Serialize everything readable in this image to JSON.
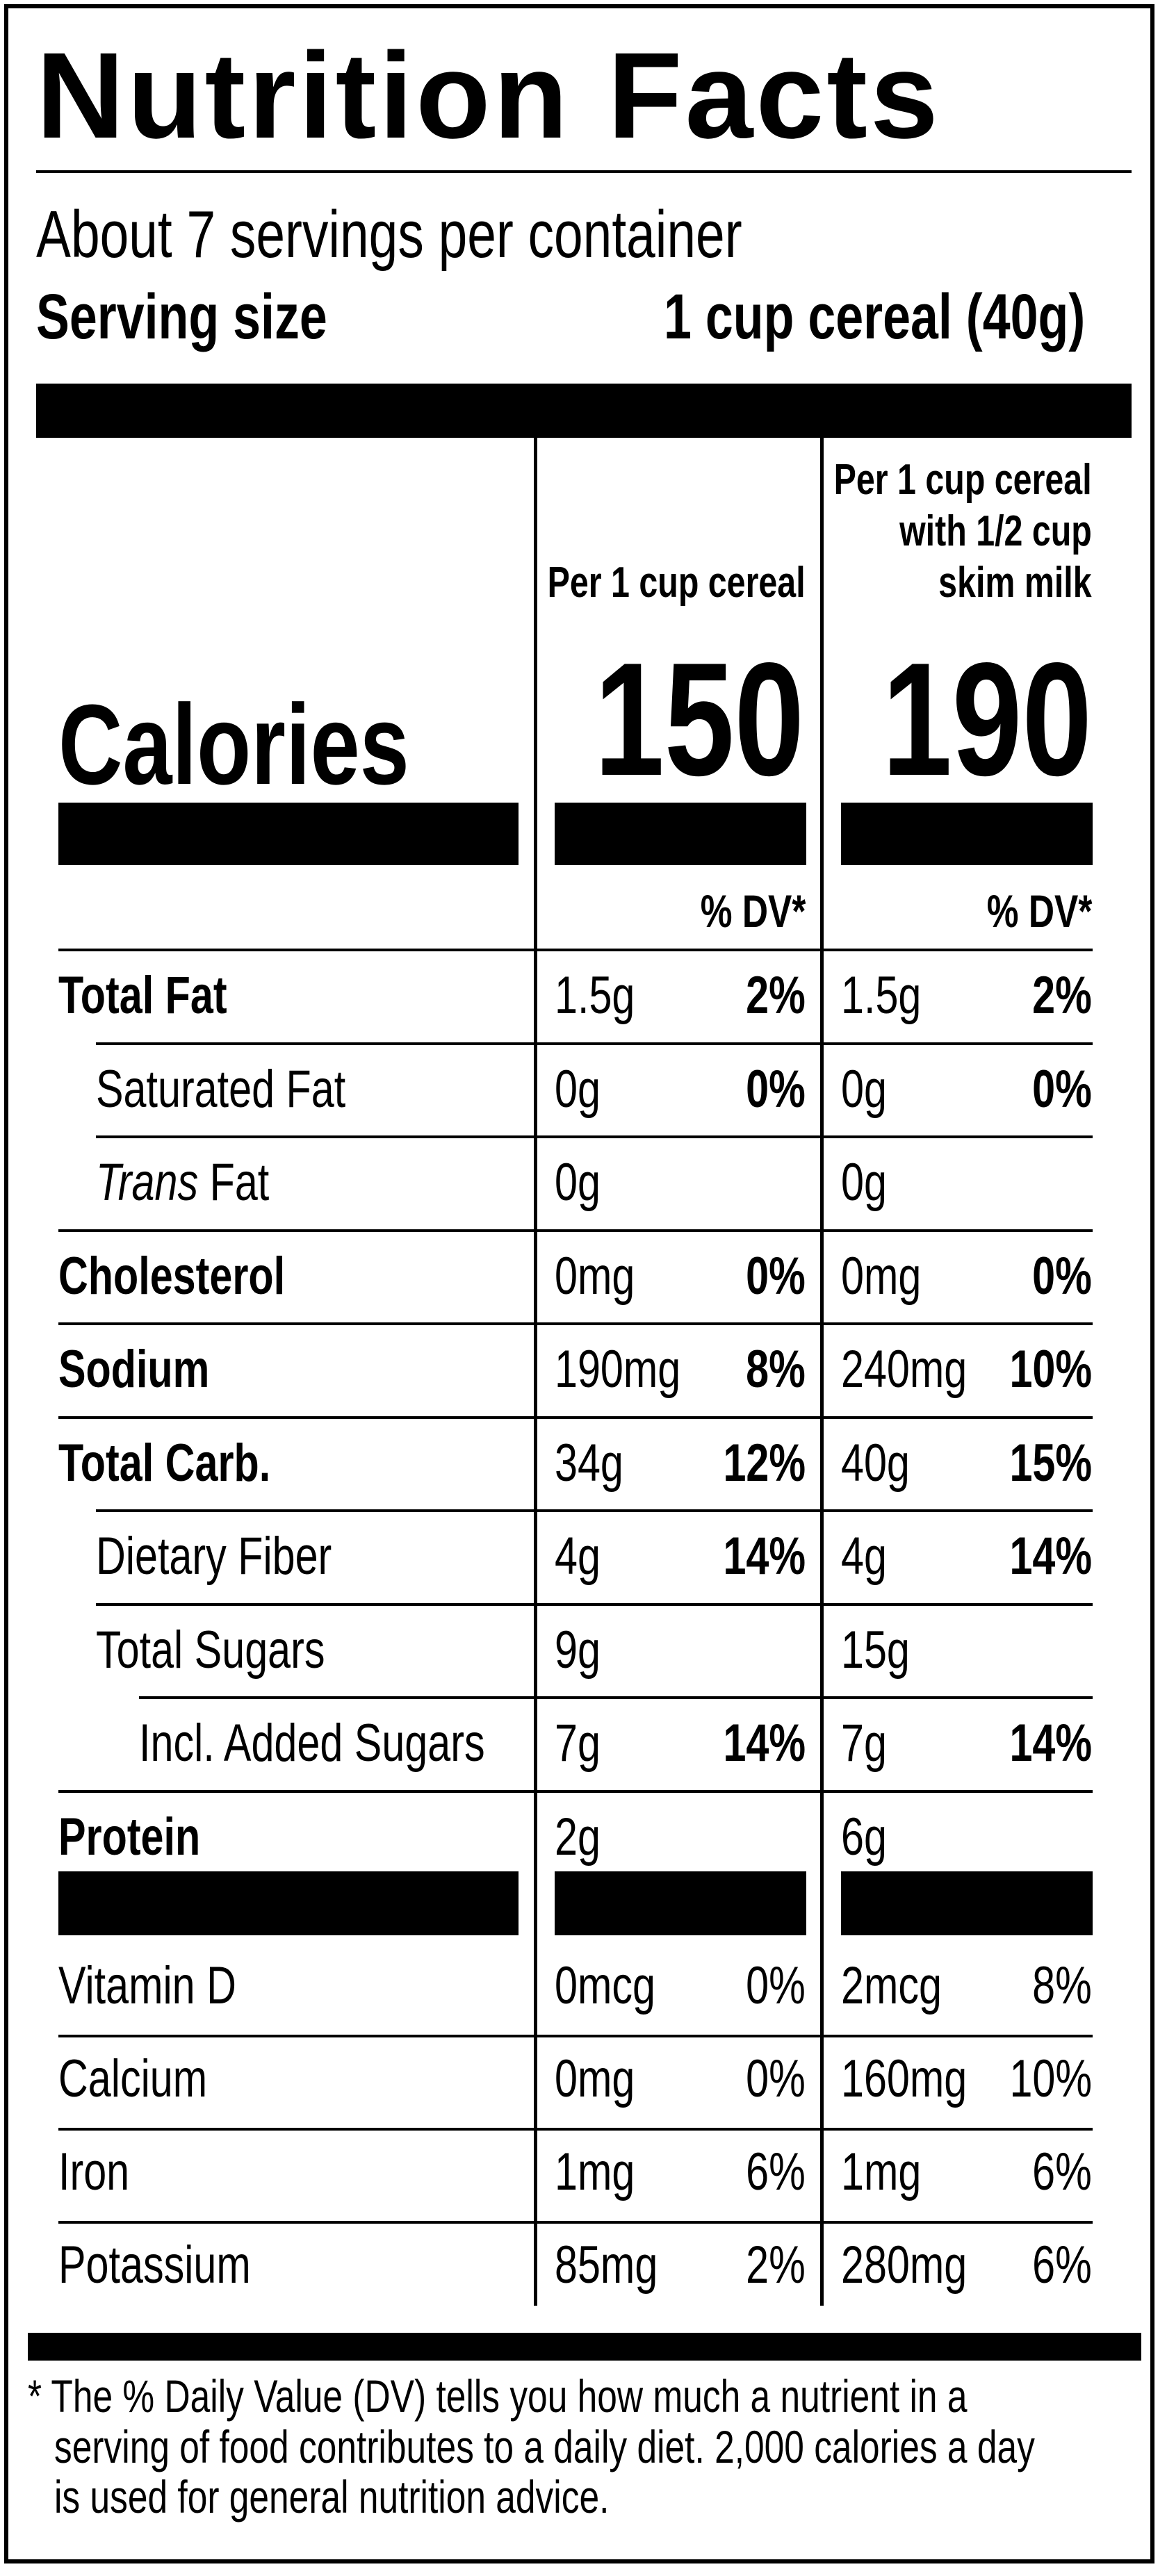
{
  "header": {
    "title": "Nutrition Facts",
    "servings": "About 7 servings per container",
    "serving_size_label": "Serving size",
    "serving_size_value": "1 cup cereal (40g)"
  },
  "columns": {
    "col1_header": "Per 1 cup cereal",
    "col2_header_lines": [
      "Per 1 cup  cereal",
      "with 1/2 cup",
      "skim milk"
    ]
  },
  "calories": {
    "label": "Calories",
    "col1": "150",
    "col2": "190"
  },
  "dv_header": "% DV*",
  "nutrients": [
    {
      "label": "Total Fat",
      "bold": true,
      "indent": 0,
      "italic_prefix": "",
      "c1_amt": "1.5g",
      "c1_dv": "2%",
      "c2_amt": "1.5g",
      "c2_dv": "2%"
    },
    {
      "label": "Saturated Fat",
      "bold": false,
      "indent": 1,
      "italic_prefix": "",
      "c1_amt": "0g",
      "c1_dv": "0%",
      "c2_amt": "0g",
      "c2_dv": "0%"
    },
    {
      "label": " Fat",
      "bold": false,
      "indent": 1,
      "italic_prefix": "Trans",
      "c1_amt": "0g",
      "c1_dv": "",
      "c2_amt": "0g",
      "c2_dv": ""
    },
    {
      "label": "Cholesterol",
      "bold": true,
      "indent": 0,
      "italic_prefix": "",
      "c1_amt": "0mg",
      "c1_dv": "0%",
      "c2_amt": "0mg",
      "c2_dv": "0%"
    },
    {
      "label": "Sodium",
      "bold": true,
      "indent": 0,
      "italic_prefix": "",
      "c1_amt": "190mg",
      "c1_dv": "8%",
      "c2_amt": "240mg",
      "c2_dv": "10%"
    },
    {
      "label": "Total Carb.",
      "bold": true,
      "indent": 0,
      "italic_prefix": "",
      "c1_amt": "34g",
      "c1_dv": "12%",
      "c2_amt": "40g",
      "c2_dv": "15%"
    },
    {
      "label": "Dietary Fiber",
      "bold": false,
      "indent": 1,
      "italic_prefix": "",
      "c1_amt": "4g",
      "c1_dv": "14%",
      "c2_amt": "4g",
      "c2_dv": "14%"
    },
    {
      "label": "Total Sugars",
      "bold": false,
      "indent": 1,
      "italic_prefix": "",
      "c1_amt": "9g",
      "c1_dv": "",
      "c2_amt": "15g",
      "c2_dv": ""
    },
    {
      "label": "Incl. Added Sugars",
      "bold": false,
      "indent": 2,
      "italic_prefix": "",
      "c1_amt": "7g",
      "c1_dv": "14%",
      "c2_amt": "7g",
      "c2_dv": "14%"
    },
    {
      "label": "Protein",
      "bold": true,
      "indent": 0,
      "italic_prefix": "",
      "c1_amt": "2g",
      "c1_dv": "",
      "c2_amt": "6g",
      "c2_dv": ""
    }
  ],
  "vitamins": [
    {
      "label": "Vitamin D",
      "c1_amt": "0mcg",
      "c1_dv": "0%",
      "c2_amt": "2mcg",
      "c2_dv": "8%"
    },
    {
      "label": "Calcium",
      "c1_amt": "0mg",
      "c1_dv": "0%",
      "c2_amt": "160mg",
      "c2_dv": "10%"
    },
    {
      "label": "Iron",
      "c1_amt": "1mg",
      "c1_dv": "6%",
      "c2_amt": "1mg",
      "c2_dv": "6%"
    },
    {
      "label": "Potassium",
      "c1_amt": "85mg",
      "c1_dv": "2%",
      "c2_amt": "280mg",
      "c2_dv": "6%"
    }
  ],
  "footnote_lines": [
    "* The % Daily Value (DV) tells you how much a nutrient in a",
    "serving of food contributes to a daily diet. 2,000 calories a day",
    "is used for general nutrition advice."
  ]
}
